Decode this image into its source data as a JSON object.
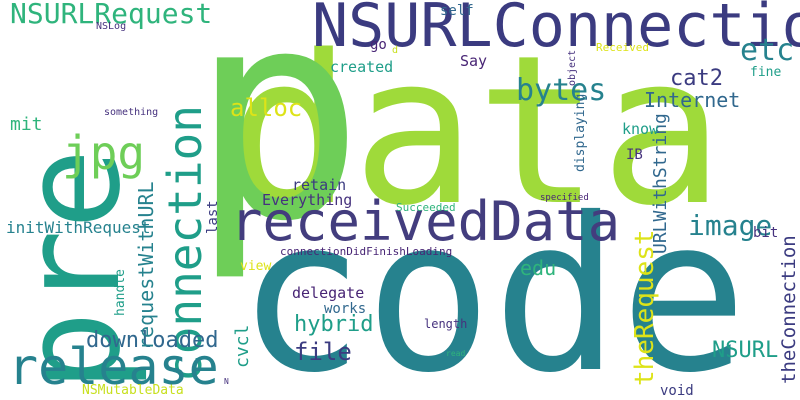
{
  "palette": {
    "navy": "#3b3b80",
    "indigo": "#433d7e",
    "blue": "#31688e",
    "teal": "#26828e",
    "sea": "#1f9e89",
    "mint": "#2fb47c",
    "green": "#6ece58",
    "lime": "#9fda3a",
    "yellow": "#c8e020",
    "gold": "#dde318",
    "dark": "#482575",
    "purple": "#46327e"
  },
  "words": [
    {
      "id": "data",
      "text": "data"
    },
    {
      "id": "code",
      "text": "code"
    },
    {
      "id": "p",
      "text": "p"
    },
    {
      "id": "pre",
      "text": "pre"
    },
    {
      "id": "receivedData",
      "text": "receivedData"
    },
    {
      "id": "NSURLConnection",
      "text": "NSURLConnection"
    },
    {
      "id": "connection",
      "text": "connection"
    },
    {
      "id": "release",
      "text": "release"
    },
    {
      "id": "NSURLRequest",
      "text": "NSURLRequest"
    },
    {
      "id": "jpg",
      "text": "jpg"
    },
    {
      "id": "bytes",
      "text": "bytes"
    },
    {
      "id": "etc",
      "text": "etc"
    },
    {
      "id": "image",
      "text": "image"
    },
    {
      "id": "alloc",
      "text": "alloc"
    },
    {
      "id": "file",
      "text": "file"
    },
    {
      "id": "hybrid",
      "text": "hybrid"
    },
    {
      "id": "downloaded",
      "text": "downloaded"
    },
    {
      "id": "NSURL",
      "text": "NSURL"
    },
    {
      "id": "theRequest",
      "text": "theRequest"
    },
    {
      "id": "theConnection",
      "text": "theConnection"
    },
    {
      "id": "URLWithString",
      "text": "URLWithString"
    },
    {
      "id": "requestWithURL",
      "text": "requestWithURL"
    },
    {
      "id": "Internet",
      "text": "Internet"
    },
    {
      "id": "cat2",
      "text": "cat2"
    },
    {
      "id": "edu",
      "text": "edu"
    },
    {
      "id": "mit",
      "text": "mit"
    },
    {
      "id": "cvcl",
      "text": "cvcl"
    },
    {
      "id": "initWithRequest",
      "text": "initWithRequest"
    },
    {
      "id": "Everything",
      "text": "Everything"
    },
    {
      "id": "retain",
      "text": "retain"
    },
    {
      "id": "delegate",
      "text": "delegate"
    },
    {
      "id": "works",
      "text": "works"
    },
    {
      "id": "created",
      "text": "created"
    },
    {
      "id": "Say",
      "text": "Say"
    },
    {
      "id": "self",
      "text": "self"
    },
    {
      "id": "go",
      "text": "go"
    },
    {
      "id": "d",
      "text": "d"
    },
    {
      "id": "know",
      "text": "know"
    },
    {
      "id": "IB",
      "text": "IB"
    },
    {
      "id": "bit",
      "text": "bit"
    },
    {
      "id": "fine",
      "text": "fine"
    },
    {
      "id": "view",
      "text": "view"
    },
    {
      "id": "handle",
      "text": "handle"
    },
    {
      "id": "last",
      "text": "last"
    },
    {
      "id": "void",
      "text": "void"
    },
    {
      "id": "length",
      "text": "length"
    },
    {
      "id": "displaying",
      "text": "displaying"
    },
    {
      "id": "Received",
      "text": "Received"
    },
    {
      "id": "object",
      "text": "object"
    },
    {
      "id": "Succeeded",
      "text": "Succeeded"
    },
    {
      "id": "specified",
      "text": "specified"
    },
    {
      "id": "connectionDidFinishLoading",
      "text": "connectionDidFinishLoading"
    },
    {
      "id": "NSMutableData",
      "text": "NSMutableData"
    },
    {
      "id": "NSLog",
      "text": "NSLog"
    },
    {
      "id": "something",
      "text": "something"
    },
    {
      "id": "read",
      "text": "read"
    },
    {
      "id": "N",
      "text": "N"
    }
  ]
}
